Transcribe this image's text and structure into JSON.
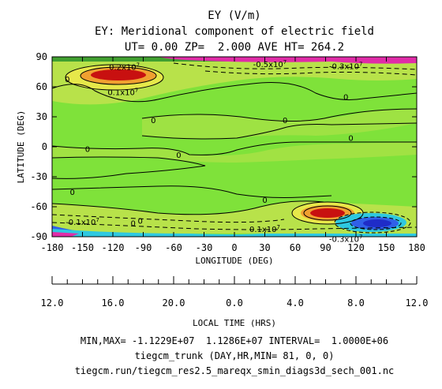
{
  "chart_data": {
    "type": "heatmap",
    "title": "EY (V/m)",
    "subtitle": "EY: Meridional component of electric field",
    "info_line": "UT= 0.00 ZP=  2.000 AVE HT= 264.2",
    "xlabel": "LONGITUDE (DEG)",
    "ylabel": "LATITUDE (DEG)",
    "xlim": [
      -180,
      180
    ],
    "ylim": [
      -90,
      90
    ],
    "x_ticks": [
      "-180",
      "-150",
      "-120",
      "-90",
      "-60",
      "-30",
      "0",
      "30",
      "60",
      "90",
      "120",
      "150",
      "180"
    ],
    "y_ticks": [
      "90",
      "60",
      "30",
      "0",
      "-30",
      "-60",
      "-90"
    ],
    "local_time_label": "LOCAL TIME (HRS)",
    "local_time_ticks": [
      "12.0",
      "16.0",
      "20.0",
      "0.0",
      "4.0",
      "8.0",
      "12.0"
    ],
    "min_max_line": "MIN,MAX= -1.1229E+07  1.1286E+07 INTERVAL=  1.0000E+06",
    "model_line": "tiegcm_trunk (DAY,HR,MIN= 81, 0, 0)",
    "file_line": "tiegcm.run/tiegcm_res2.5_mareqx_smin_diags3d_sech_001.nc",
    "contour_labels": [
      {
        "text": "-0.2x10",
        "exp": "7",
        "x": -110,
        "y": 80
      },
      {
        "text": "-0.5x10",
        "exp": "7",
        "x": 35,
        "y": 83
      },
      {
        "text": "-0.3x10",
        "exp": "7",
        "x": 110,
        "y": 81
      },
      {
        "text": "0.1x10",
        "exp": "7",
        "x": -110,
        "y": 55
      },
      {
        "text": "0",
        "exp": "",
        "x": -165,
        "y": 68
      },
      {
        "text": "0",
        "exp": "",
        "x": 110,
        "y": 50
      },
      {
        "text": "0",
        "exp": "",
        "x": -80,
        "y": 27
      },
      {
        "text": "0",
        "exp": "",
        "x": 50,
        "y": 27
      },
      {
        "text": "0",
        "exp": "",
        "x": 115,
        "y": 9
      },
      {
        "text": "0",
        "exp": "",
        "x": -145,
        "y": -2
      },
      {
        "text": "0",
        "exp": "",
        "x": -55,
        "y": -8
      },
      {
        "text": "0",
        "exp": "",
        "x": -160,
        "y": -45
      },
      {
        "text": "0",
        "exp": "",
        "x": -93,
        "y": -74
      },
      {
        "text": "0",
        "exp": "",
        "x": 30,
        "y": -53
      },
      {
        "text": "-0.1x10",
        "exp": "7",
        "x": -150,
        "y": -75
      },
      {
        "text": "0",
        "exp": "",
        "x": -100,
        "y": -76
      },
      {
        "text": "0.1x10",
        "exp": "7",
        "x": 30,
        "y": -82
      },
      {
        "text": "-0.3x10",
        "exp": "7",
        "x": 110,
        "y": -92
      }
    ],
    "colors": {
      "background": "#7fe23a",
      "band_light": "#b8e24a",
      "band_yellow": "#e6e84a",
      "band_orange": "#f0a030",
      "band_red": "#c81010",
      "band_magenta": "#e02ca8",
      "band_cyan": "#2ec8e0",
      "band_blue": "#3060e8",
      "band_darkgreen": "#40a030"
    }
  }
}
